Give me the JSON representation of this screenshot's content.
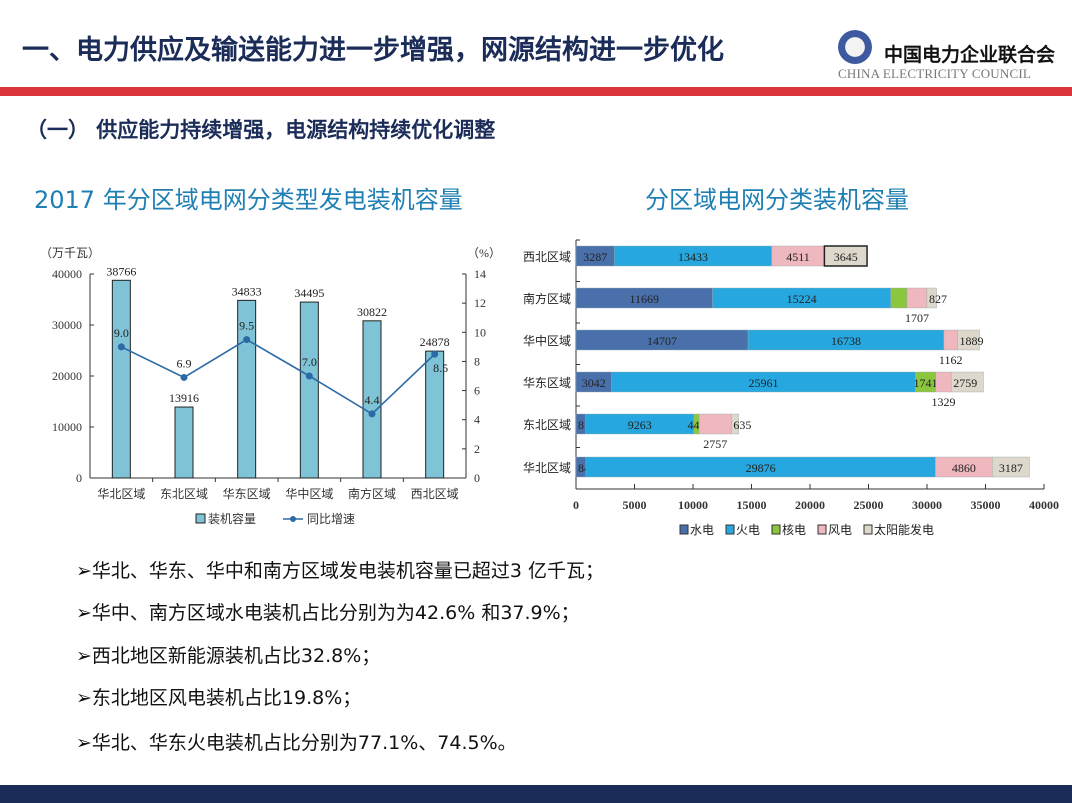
{
  "header": {
    "title": "一、电力供应及输送能力进一步增强，网源结构进一步优化",
    "logo_cn": "中国电力企业联合会",
    "logo_en": "CHINA ELECTRICITY COUNCIL",
    "accent_color": "#d9353a",
    "navy_color": "#1b2c58"
  },
  "subtitle": "（一） 供应能力持续增强，电源结构持续优化调整",
  "chart_titles": [
    "2017 年分区域电网分类型发电装机容量",
    "分区域电网分类装机容量"
  ],
  "chart_data": [
    {
      "type": "bar",
      "categories": [
        "华北区域",
        "东北区域",
        "华东区域",
        "华中区域",
        "南方区域",
        "西北区域"
      ],
      "series": [
        {
          "name": "装机容量",
          "type": "bar",
          "axis": "left",
          "values": [
            38766,
            13916,
            34833,
            34495,
            30822,
            24878
          ],
          "color": "#7fc3d6"
        },
        {
          "name": "同比增速",
          "type": "line",
          "axis": "right",
          "values": [
            9.0,
            6.9,
            9.5,
            7.0,
            4.4,
            8.5
          ],
          "color": "#2b6aa6"
        }
      ],
      "ylabel": "（万千瓦）",
      "y2label": "（%）",
      "ylim": [
        0,
        40000
      ],
      "yticks": [
        0,
        10000,
        20000,
        30000,
        40000
      ],
      "y2lim": [
        0,
        14
      ],
      "y2ticks": [
        0,
        2,
        4,
        6,
        8,
        10,
        12,
        14
      ],
      "legend": "bottom",
      "grid": false
    },
    {
      "type": "bar",
      "orientation": "horizontal",
      "stacked": true,
      "categories": [
        "西北区域",
        "南方区域",
        "华中区域",
        "华东区域",
        "东北区域",
        "华北区域"
      ],
      "series": [
        {
          "name": "水电",
          "values": [
            3287,
            11669,
            14707,
            3042,
            812,
            842
          ],
          "color": "#4a70ab"
        },
        {
          "name": "火电",
          "values": [
            13433,
            15224,
            16738,
            25961,
            9263,
            29876
          ],
          "color": "#27a7df"
        },
        {
          "name": "核电",
          "values": [
            0,
            1395,
            0,
            1741,
            448,
            0
          ],
          "color": "#8cc63f"
        },
        {
          "name": "风电",
          "values": [
            4511,
            1707,
            1162,
            1329,
            2757,
            4860
          ],
          "color": "#efb7be"
        },
        {
          "name": "太阳能发电",
          "values": [
            3645,
            827,
            1889,
            2759,
            635,
            3187
          ],
          "color": "#ddd8cb"
        }
      ],
      "labels": [
        [
          "3287",
          "13433",
          "",
          "4511",
          "3645"
        ],
        [
          "11669",
          "15224",
          "",
          "1707",
          "827"
        ],
        [
          "14707",
          "16738",
          "",
          "1162",
          "1889"
        ],
        [
          "3042",
          "25961",
          "1741",
          "1329",
          "2759"
        ],
        [
          "812",
          "9263",
          "448",
          "2757",
          "635"
        ],
        [
          "842",
          "29876",
          "",
          "4860",
          "3187"
        ]
      ],
      "xlim": [
        0,
        40000
      ],
      "xticks": [
        0,
        5000,
        10000,
        15000,
        20000,
        25000,
        30000,
        35000,
        40000
      ],
      "legend": "bottom",
      "grid": false
    }
  ],
  "bullets": [
    "➢华北、华东、华中和南方区域发电装机容量已超过3 亿千瓦；",
    "➢华中、南方区域水电装机占比分别为为42.6% 和37.9%；",
    "➢西北地区新能源装机占比32.8%；",
    "➢东北地区风电装机占比19.8%；",
    "➢华北、华东火电装机占比分别为77.1%、74.5%。"
  ]
}
